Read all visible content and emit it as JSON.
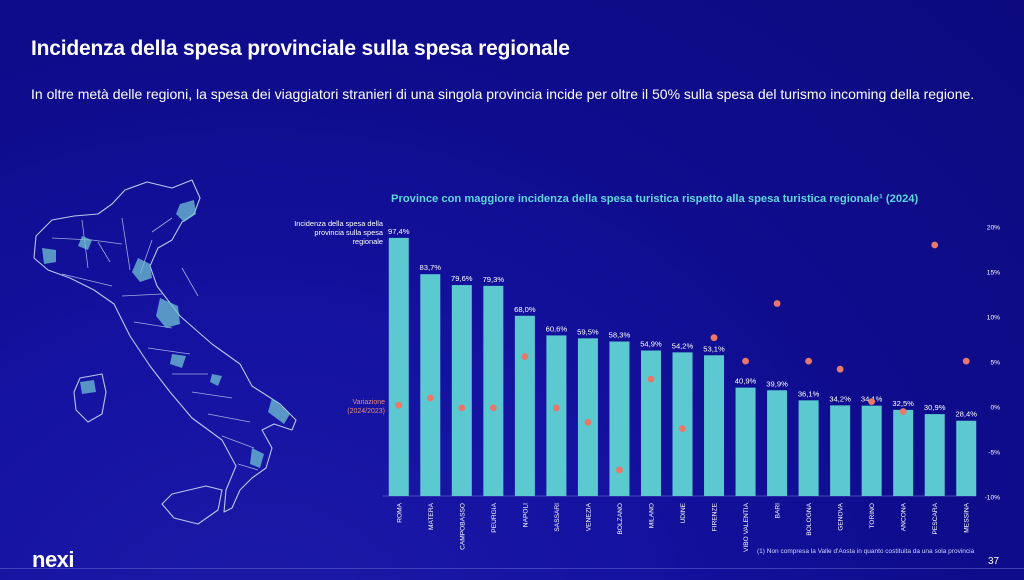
{
  "header": {
    "title": "Incidenza della spesa provinciale sulla spesa regionale",
    "subtitle": "In oltre metà delle regioni, la spesa dei viaggiatori stranieri di una singola provincia incide per oltre il 50% sulla spesa del turismo incoming della regione."
  },
  "labels": {
    "incidenza": "Incidenza della spesa della provincia sulla spesa regionale",
    "variazione": "Variazione (2024/2023)"
  },
  "chart_data": {
    "type": "bar",
    "title": "Province con maggiore incidenza della spesa turistica rispetto alla spesa turistica regionale¹ (2024)",
    "categories": [
      "ROMA",
      "MATERA",
      "CAMPOBASSO",
      "PEURGIA",
      "NAPOLI",
      "SASSARI",
      "VENEZIA",
      "BOLZANO",
      "MILANO",
      "UDINE",
      "FIRENZE",
      "VIBO VALENTIA",
      "BARI",
      "BOLOGNA",
      "GENOVA",
      "TORINO",
      "ANCONA",
      "PESCARA",
      "MESSINA"
    ],
    "series": [
      {
        "kind": "bar",
        "values": [
          97.4,
          83.7,
          79.6,
          79.3,
          68.0,
          60.6,
          59.5,
          58.3,
          54.9,
          54.2,
          53.1,
          40.9,
          39.9,
          36.1,
          34.2,
          34.1,
          32.5,
          30.9,
          28.4
        ],
        "value_labels": [
          "97,4%",
          "83,7%",
          "79,6%",
          "79,3%",
          "68,0%",
          "60,6%",
          "59,5%",
          "58,3%",
          "54,9%",
          "54,2%",
          "53,1%",
          "40,9%",
          "39,9%",
          "36,1%",
          "34,2%",
          "34,1%",
          "32,5%",
          "30,9%",
          "28,4%"
        ],
        "color": "#5cc8d0"
      },
      {
        "kind": "scatter",
        "axis": "right",
        "values": [
          0.2,
          1.0,
          -0.1,
          -0.1,
          5.6,
          -0.1,
          -1.7,
          -7.0,
          3.1,
          -2.4,
          7.7,
          5.1,
          11.5,
          5.1,
          4.2,
          0.6,
          -0.5,
          18.0,
          5.1
        ],
        "color": "#e8786a"
      }
    ],
    "right_axis": {
      "ylim": [
        -10,
        20
      ],
      "ticks": [
        20,
        15,
        10,
        5,
        0,
        -5,
        -10
      ],
      "tick_labels": [
        "20%",
        "15%",
        "10%",
        "5%",
        "0%",
        "-5%",
        "-10%"
      ]
    },
    "ylim": [
      0,
      100
    ]
  },
  "footer": {
    "logo": "nexi",
    "footnote": "(1) Non compresa la Valle d'Aosta in quanto costituita da una sola provincia",
    "page": "37"
  },
  "colors": {
    "accent": "#5fd6e0",
    "variazione": "#e78a79",
    "map_outline": "#b9c7ef",
    "map_highlight": "#6fc2d4"
  }
}
